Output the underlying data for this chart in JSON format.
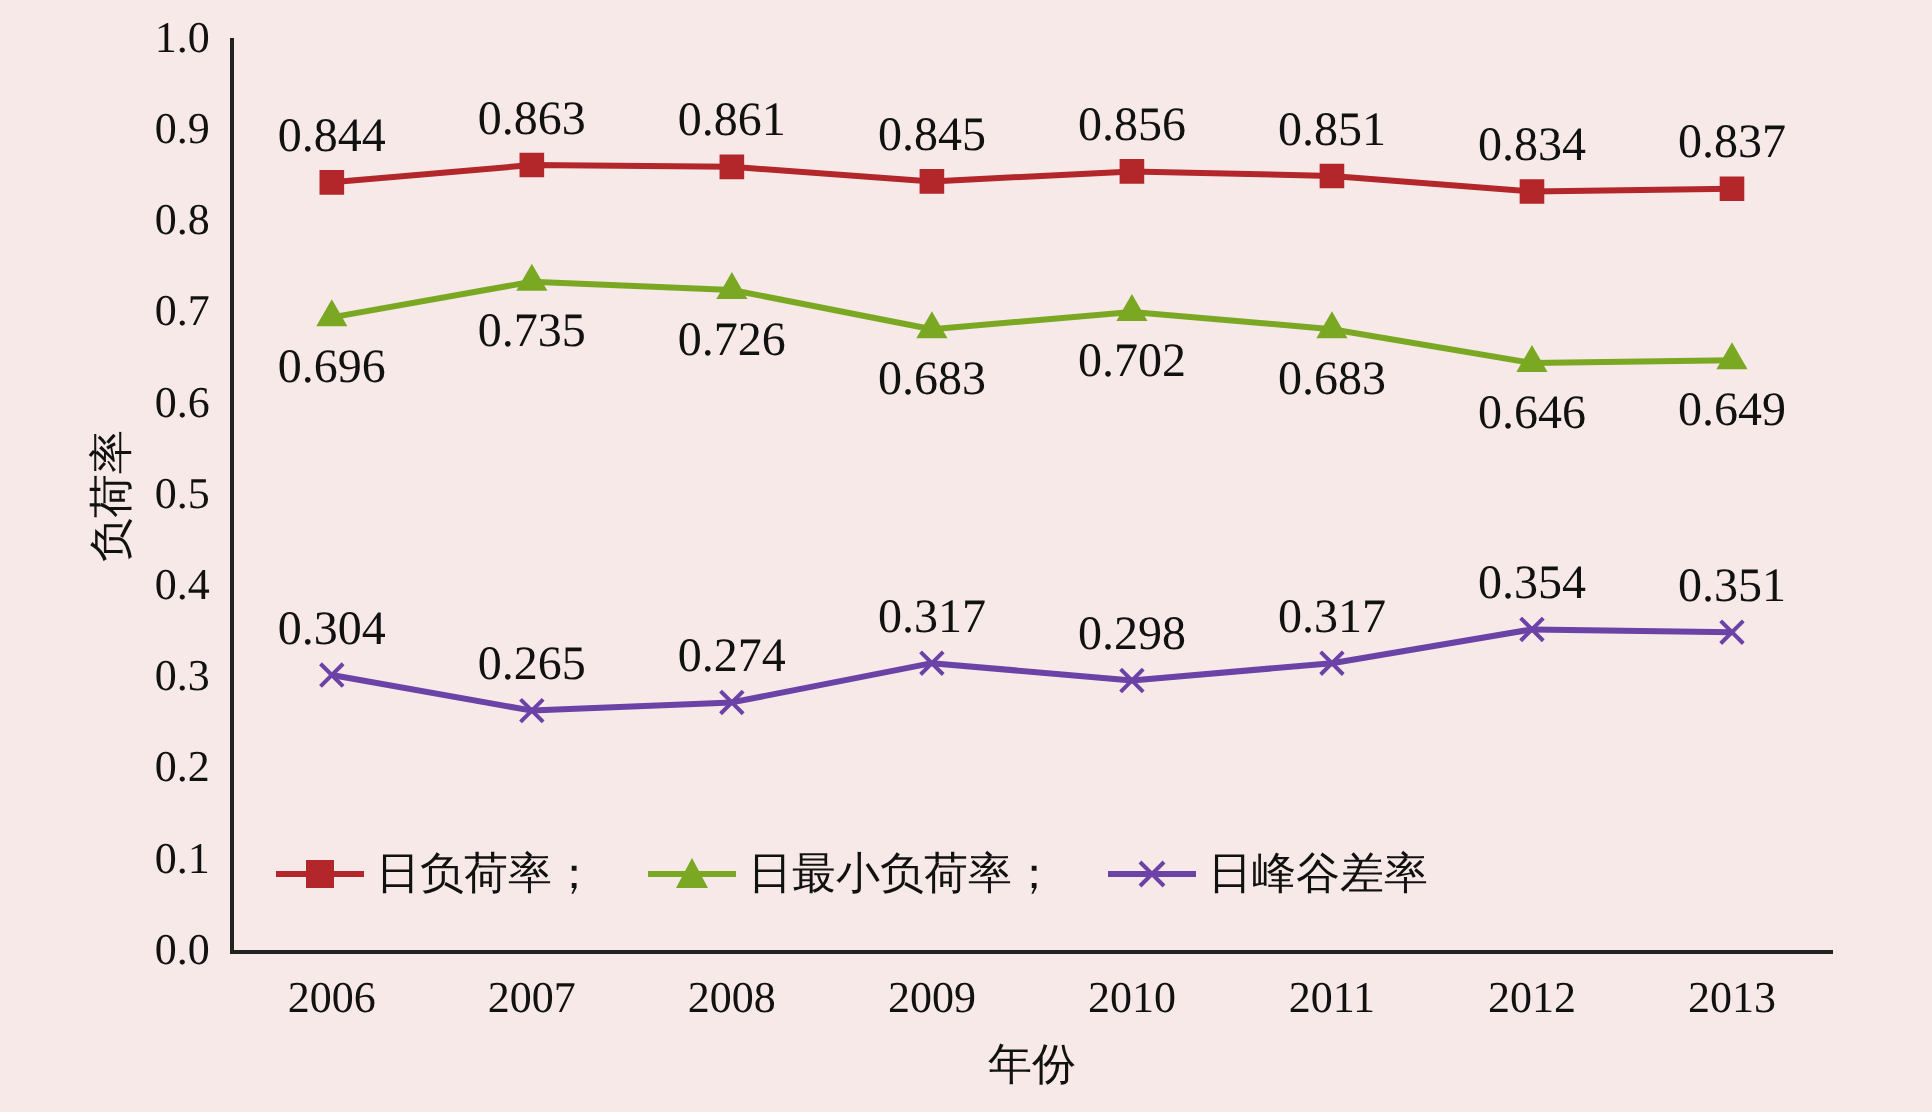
{
  "chart_data": {
    "type": "line",
    "xlabel": "年份",
    "ylabel": "负荷率",
    "categories": [
      "2006",
      "2007",
      "2008",
      "2009",
      "2010",
      "2011",
      "2012",
      "2013"
    ],
    "series": [
      {
        "name": "日负荷率；",
        "color": "#b3262a",
        "marker": "square",
        "values": [
          0.844,
          0.863,
          0.861,
          0.845,
          0.856,
          0.851,
          0.834,
          0.837
        ]
      },
      {
        "name": "日最小负荷率；",
        "color": "#7aa822",
        "marker": "triangle",
        "values": [
          0.696,
          0.735,
          0.726,
          0.683,
          0.702,
          0.683,
          0.646,
          0.649
        ]
      },
      {
        "name": "日峰谷差率",
        "color": "#6b42a6",
        "marker": "cross",
        "values": [
          0.304,
          0.265,
          0.274,
          0.317,
          0.298,
          0.317,
          0.354,
          0.351
        ]
      }
    ],
    "ylim": [
      0,
      1
    ],
    "yticks": [
      {
        "value": 0,
        "label": "0.0"
      },
      {
        "value": 0.1,
        "label": "0.1"
      },
      {
        "value": 0.2,
        "label": "0.2"
      },
      {
        "value": 0.3,
        "label": "0.3"
      },
      {
        "value": 0.4,
        "label": "0.4"
      },
      {
        "value": 0.5,
        "label": "0.5"
      },
      {
        "value": 0.6,
        "label": "0.6"
      },
      {
        "value": 0.7,
        "label": "0.7"
      },
      {
        "value": 0.8,
        "label": "0.8"
      },
      {
        "value": 0.9,
        "label": "0.9"
      },
      {
        "value": 1,
        "label": "1.0"
      }
    ],
    "grid": false,
    "legend": "bottom left",
    "data_labels": true,
    "line_style": "solid"
  }
}
